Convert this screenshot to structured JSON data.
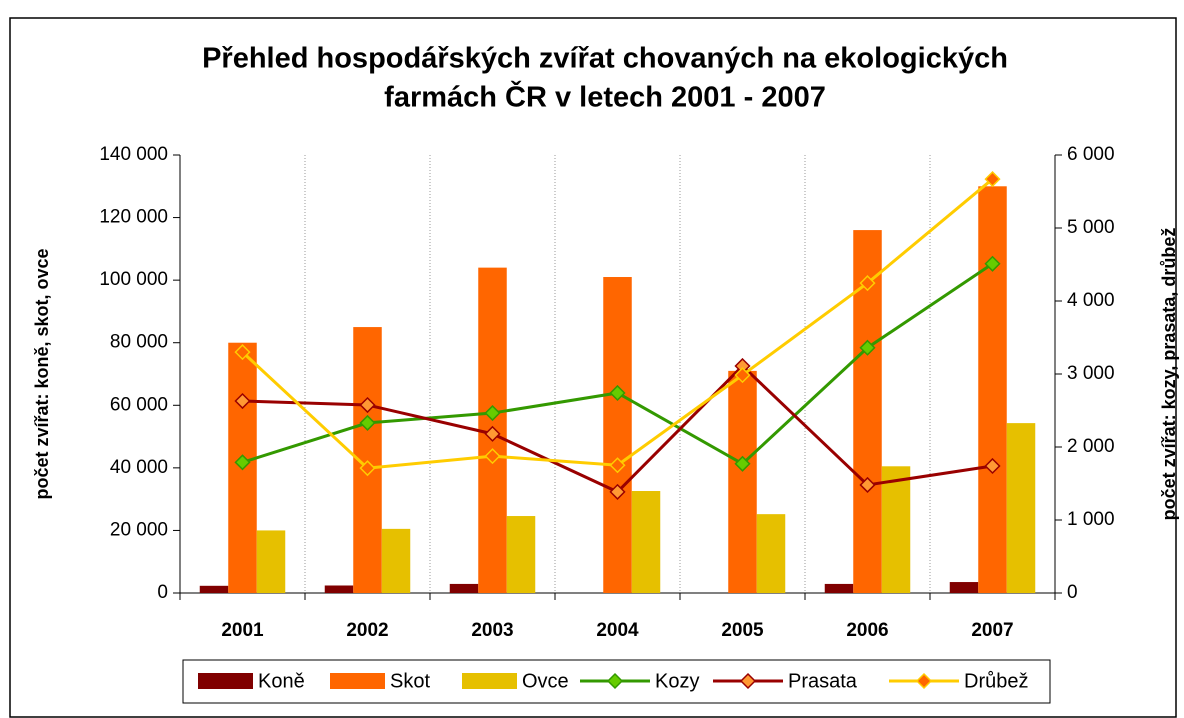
{
  "chart_data": {
    "type": "bar-line",
    "title": [
      "Přehled hospodářských zvířat chovaných na ekologických",
      "farmách ČR v letech 2001 - 2007"
    ],
    "y_label": "počet zvířat: koně, skot, ovce",
    "y2_label": "počet zvířat: kozy, prasata, drůbež",
    "categories": [
      "2001",
      "2002",
      "2003",
      "2004",
      "2005",
      "2006",
      "2007"
    ],
    "series": [
      {
        "name": "Koně",
        "kind": "bar",
        "color": "#800000",
        "values": [
          2300,
          2400,
          2900,
          null,
          null,
          2900,
          3500
        ]
      },
      {
        "name": "Skot",
        "kind": "bar",
        "color": "#ff6600",
        "values": [
          80000,
          85000,
          104000,
          101000,
          71000,
          116000,
          130000
        ]
      },
      {
        "name": "Ovce",
        "kind": "bar",
        "color": "#e6c000",
        "values": [
          20000,
          20500,
          24600,
          32600,
          25200,
          40500,
          54300
        ]
      },
      {
        "name": "Kozy",
        "kind": "line",
        "axis": "y2",
        "color": "#339900",
        "marker_color": "#66cc00",
        "values": [
          1790,
          2330,
          2465,
          2740,
          1770,
          3360,
          4510
        ]
      },
      {
        "name": "Prasata",
        "kind": "line",
        "axis": "y2",
        "color": "#990000",
        "marker_color": "#ff9933",
        "values": [
          2630,
          2575,
          2180,
          1385,
          3110,
          1480,
          1740
        ]
      },
      {
        "name": "Drůbež",
        "kind": "line",
        "axis": "y2",
        "color": "#ffcc00",
        "marker_color": "#ff6600",
        "values": [
          3300,
          1710,
          1875,
          1750,
          2985,
          4245,
          5670
        ]
      }
    ],
    "ylim": [
      0,
      140000
    ],
    "yticks": [
      0,
      {
        "value": 20000,
        "label": "20 000"
      },
      {
        "value": 40000,
        "label": "40 000"
      },
      {
        "value": 60000,
        "label": "60 000"
      },
      {
        "value": 80000,
        "label": "80 000"
      },
      {
        "value": 100000,
        "label": "100 000"
      },
      {
        "value": 120000,
        "label": "120 000"
      },
      {
        "value": 140000,
        "label": "140 000"
      }
    ],
    "y2lim": [
      0,
      6000
    ],
    "y2ticks": [
      0,
      {
        "value": 1000,
        "label": "1 000"
      },
      {
        "value": 2000,
        "label": "2 000"
      },
      {
        "value": 3000,
        "label": "3 000"
      },
      {
        "value": 4000,
        "label": "4 000"
      },
      {
        "value": 5000,
        "label": "5 000"
      },
      {
        "value": 6000,
        "label": "6 000"
      }
    ],
    "grid": "vertical",
    "legend": "bottom"
  }
}
